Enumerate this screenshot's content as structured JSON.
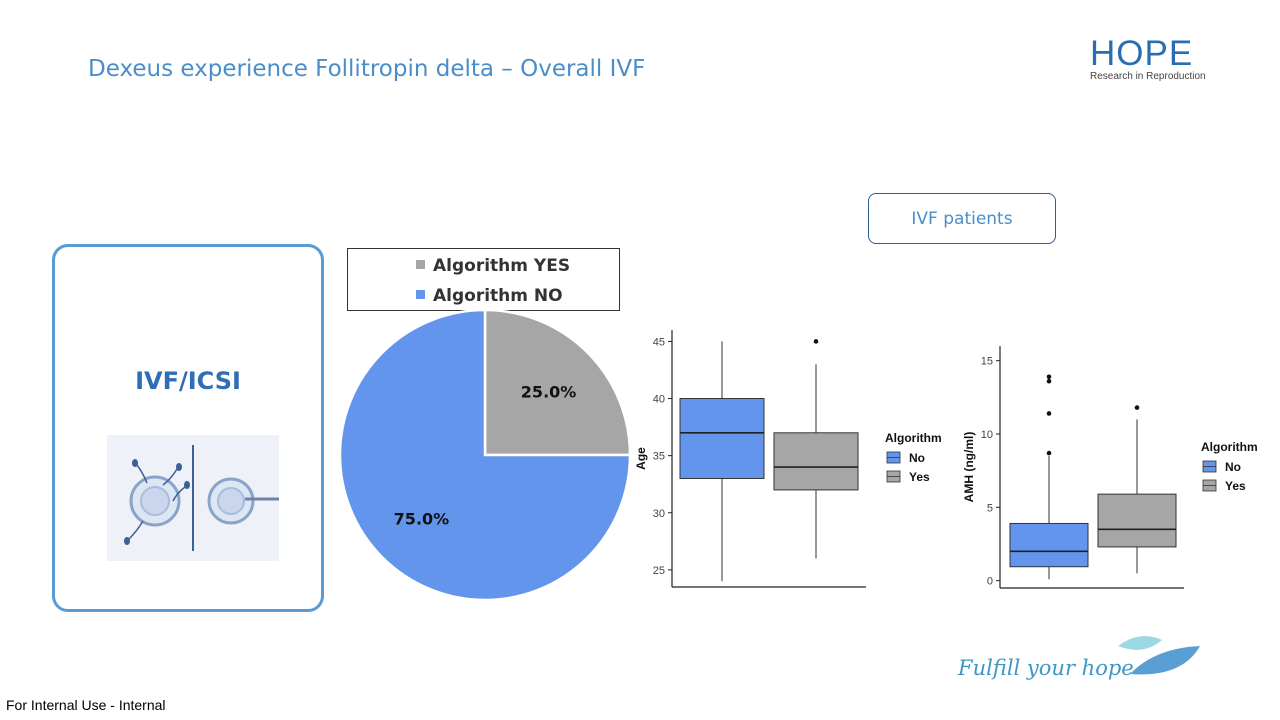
{
  "slide": {
    "title": "Dexeus experience Follitropin delta – Overall IVF",
    "logo_main": "HOPE",
    "logo_sub": "Research in Reproduction",
    "ivf_title": "IVF/ICSI",
    "ivf_patients_label": "IVF patients",
    "tagline": "Fulfill your hope",
    "footer": "For Internal Use - Internal"
  },
  "colors": {
    "accent": "#5b9bd5",
    "no": "#6495ed",
    "yes": "#a6a6a6",
    "title": "#4a8ec9"
  },
  "chart_data": [
    {
      "type": "pie",
      "title": "",
      "slices": [
        {
          "name": "Algorithm YES",
          "value": 25.0,
          "label": "25.0%",
          "color": "#a6a6a6"
        },
        {
          "name": "Algorithm NO",
          "value": 75.0,
          "label": "75.0%",
          "color": "#6495ed"
        }
      ],
      "legend": "top"
    },
    {
      "type": "box",
      "title": "",
      "xlabel": "",
      "ylabel": "Age",
      "ylim": [
        23.5,
        46
      ],
      "yticks": [
        25,
        30,
        35,
        40,
        45
      ],
      "legend_title": "Algorithm",
      "legend": "right",
      "series": [
        {
          "name": "No",
          "color": "#6495ed",
          "min": 24,
          "q1": 33,
          "median": 37,
          "q3": 40,
          "max": 45,
          "outliers": []
        },
        {
          "name": "Yes",
          "color": "#a6a6a6",
          "min": 26,
          "q1": 32,
          "median": 34,
          "q3": 37,
          "max": 43,
          "outliers": [
            45
          ]
        }
      ]
    },
    {
      "type": "box",
      "title": "",
      "xlabel": "",
      "ylabel": "AMH (ng/ml)",
      "ylim": [
        -0.5,
        16
      ],
      "yticks": [
        0,
        5,
        10,
        15
      ],
      "legend_title": "Algorithm",
      "legend": "right",
      "series": [
        {
          "name": "No",
          "color": "#6495ed",
          "min": 0.1,
          "q1": 0.95,
          "median": 2.0,
          "q3": 3.9,
          "max": 8.5,
          "outliers": [
            8.7,
            11.4,
            13.6,
            13.9
          ]
        },
        {
          "name": "Yes",
          "color": "#a6a6a6",
          "min": 0.5,
          "q1": 2.3,
          "median": 3.5,
          "q3": 5.9,
          "max": 11.0,
          "outliers": [
            11.8
          ]
        }
      ]
    }
  ]
}
